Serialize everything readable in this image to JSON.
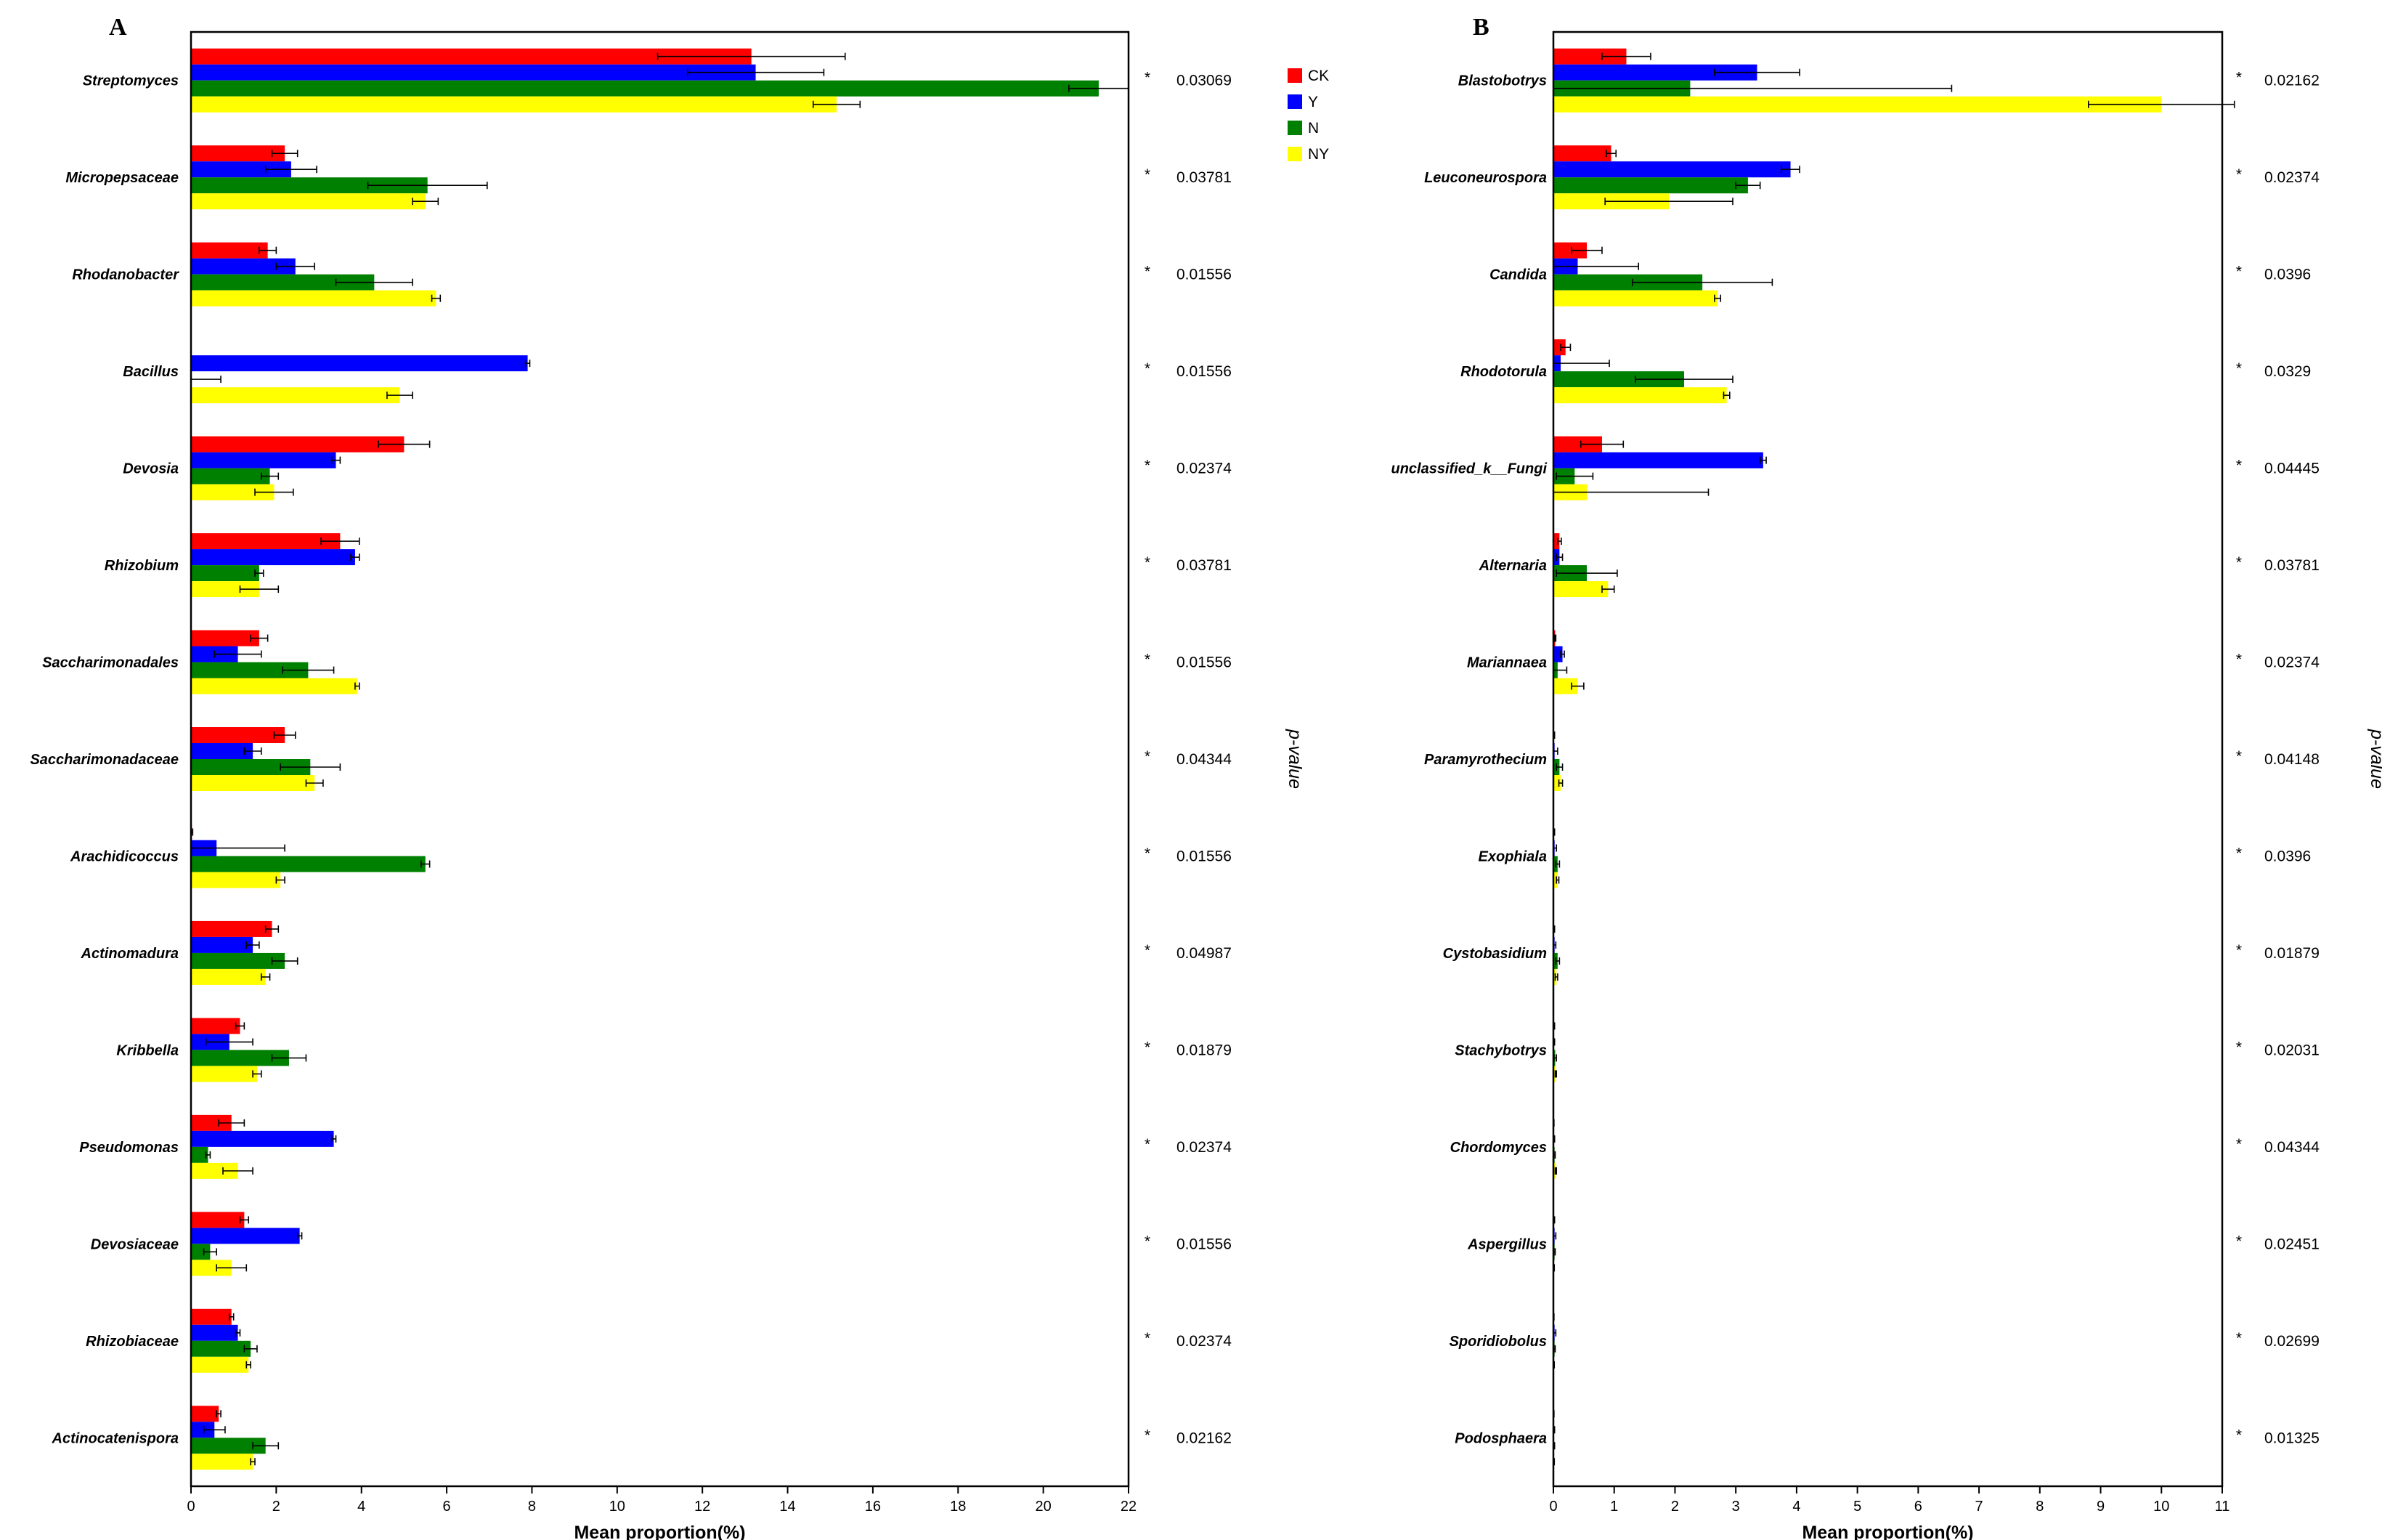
{
  "legend": [
    {
      "label": "CK",
      "color": "#ff0000"
    },
    {
      "label": "Y",
      "color": "#0000ff"
    },
    {
      "label": "N",
      "color": "#008000"
    },
    {
      "label": "NY",
      "color": "#ffff00"
    }
  ],
  "chart_data": [
    {
      "type": "bar",
      "orientation": "horizontal",
      "panel": "A",
      "xlabel": "Mean proportion(%)",
      "pvalue_title": "p-value",
      "xlim": [
        0,
        22
      ],
      "xticks": [
        "0",
        "2",
        "4",
        "6",
        "8",
        "10",
        "12",
        "14",
        "16",
        "18",
        "20",
        "22"
      ],
      "categories": [
        "Streptomyces",
        "Micropepsaceae",
        "Rhodanobacter",
        "Bacillus",
        "Devosia",
        "Rhizobium",
        "Saccharimonadales",
        "Saccharimonadaceae",
        "Arachidicoccus",
        "Actinomadura",
        "Kribbella",
        "Pseudomonas",
        "Devosiaceae",
        "Rhizobiaceae",
        "Actinocatenispora"
      ],
      "series": [
        {
          "name": "CK",
          "color": "#ff0000",
          "values": [
            13.15,
            2.2,
            1.8,
            0,
            5.0,
            3.5,
            1.6,
            2.2,
            0.02,
            1.9,
            1.15,
            0.95,
            1.25,
            0.95,
            0.65
          ],
          "errors": [
            2.2,
            0.3,
            0.2,
            0,
            0.6,
            0.45,
            0.2,
            0.25,
            0.02,
            0.15,
            0.1,
            0.3,
            0.1,
            0.05,
            0.05
          ]
        },
        {
          "name": "Y",
          "color": "#0000ff",
          "values": [
            13.25,
            2.35,
            2.45,
            7.9,
            3.4,
            3.85,
            1.1,
            1.45,
            0.6,
            1.45,
            0.9,
            3.35,
            2.55,
            1.1,
            0.55
          ],
          "errors": [
            1.6,
            0.6,
            0.45,
            0.05,
            0.1,
            0.1,
            0.55,
            0.2,
            1.6,
            0.15,
            0.55,
            0.05,
            0.05,
            0.05,
            0.25
          ]
        },
        {
          "name": "N",
          "color": "#008000",
          "values": [
            21.3,
            5.55,
            4.3,
            0,
            1.85,
            1.6,
            2.75,
            2.8,
            5.5,
            2.2,
            2.3,
            0.4,
            0.45,
            1.4,
            1.75
          ],
          "errors": [
            0.7,
            1.4,
            0.9,
            0.7,
            0.2,
            0.1,
            0.6,
            0.7,
            0.1,
            0.3,
            0.4,
            0.05,
            0.15,
            0.15,
            0.3
          ]
        },
        {
          "name": "NY",
          "color": "#ffff00",
          "values": [
            15.15,
            5.5,
            5.75,
            4.9,
            1.95,
            1.6,
            3.9,
            2.9,
            2.1,
            1.75,
            1.55,
            1.1,
            0.95,
            1.35,
            1.45
          ],
          "errors": [
            0.55,
            0.3,
            0.1,
            0.3,
            0.45,
            0.45,
            0.05,
            0.2,
            0.1,
            0.1,
            0.1,
            0.35,
            0.35,
            0.05,
            0.05
          ]
        }
      ],
      "significance": [
        "*",
        "*",
        "*",
        "*",
        "*",
        "*",
        "*",
        "*",
        "*",
        "*",
        "*",
        "*",
        "*",
        "*",
        "*"
      ],
      "pvalues": [
        "0.03069",
        "0.03781",
        "0.01556",
        "0.01556",
        "0.02374",
        "0.03781",
        "0.01556",
        "0.04344",
        "0.01556",
        "0.04987",
        "0.01879",
        "0.02374",
        "0.01556",
        "0.02374",
        "0.02162"
      ]
    },
    {
      "type": "bar",
      "orientation": "horizontal",
      "panel": "B",
      "xlabel": "Mean proportion(%)",
      "pvalue_title": "p-value",
      "xlim": [
        0,
        11
      ],
      "xticks": [
        "0",
        "1",
        "2",
        "3",
        "4",
        "5",
        "6",
        "7",
        "8",
        "9",
        "10",
        "11"
      ],
      "categories": [
        "Blastobotrys",
        "Leuconeurospora",
        "Candida",
        "Rhodotorula",
        "unclassified_k__Fungi",
        "Alternaria",
        "Mariannaea",
        "Paramyrothecium",
        "Exophiala",
        "Cystobasidium",
        "Stachybotrys",
        "Chordomyces",
        "Aspergillus",
        "Sporidiobolus",
        "Podosphaera"
      ],
      "series": [
        {
          "name": "CK",
          "color": "#ff0000",
          "values": [
            1.2,
            0.95,
            0.55,
            0.2,
            0.8,
            0.1,
            0.03,
            0.01,
            0.01,
            0.01,
            0.01,
            0.005,
            0.01,
            0.005,
            0.005
          ],
          "errors": [
            0.4,
            0.08,
            0.25,
            0.08,
            0.35,
            0.03,
            0.01,
            0.01,
            0.01,
            0.01,
            0.01,
            0.005,
            0.01,
            0.005,
            0.005
          ]
        },
        {
          "name": "Y",
          "color": "#0000ff",
          "values": [
            3.35,
            3.9,
            0.4,
            0.12,
            3.45,
            0.1,
            0.15,
            0.02,
            0.02,
            0.02,
            0.01,
            0.01,
            0.02,
            0.02,
            0.01
          ],
          "errors": [
            0.7,
            0.15,
            1.0,
            0.8,
            0.05,
            0.05,
            0.03,
            0.05,
            0.03,
            0.02,
            0.01,
            0.01,
            0.02,
            0.02,
            0.01
          ]
        },
        {
          "name": "N",
          "color": "#008000",
          "values": [
            2.25,
            3.2,
            2.45,
            2.15,
            0.35,
            0.55,
            0.07,
            0.1,
            0.07,
            0.07,
            0.03,
            0.02,
            0.02,
            0.02,
            0.01
          ],
          "errors": [
            4.3,
            0.2,
            1.15,
            0.8,
            0.3,
            0.5,
            0.15,
            0.05,
            0.03,
            0.03,
            0.02,
            0.01,
            0.01,
            0.01,
            0.01
          ]
        },
        {
          "name": "NY",
          "color": "#ffff00",
          "values": [
            10.0,
            1.9,
            2.7,
            2.85,
            0.55,
            0.9,
            0.4,
            0.12,
            0.07,
            0.05,
            0.04,
            0.04,
            0.01,
            0.01,
            0.01
          ],
          "errors": [
            1.2,
            1.05,
            0.05,
            0.05,
            2.0,
            0.1,
            0.1,
            0.03,
            0.02,
            0.02,
            0.01,
            0.01,
            0.005,
            0.005,
            0.005
          ]
        }
      ],
      "significance": [
        "*",
        "*",
        "*",
        "*",
        "*",
        "*",
        "*",
        "*",
        "*",
        "*",
        "*",
        "*",
        "*",
        "*",
        "*"
      ],
      "pvalues": [
        "0.02162",
        "0.02374",
        "0.0396",
        "0.0329",
        "0.04445",
        "0.03781",
        "0.02374",
        "0.04148",
        "0.0396",
        "0.01879",
        "0.02031",
        "0.04344",
        "0.02451",
        "0.02699",
        "0.01325"
      ]
    }
  ]
}
